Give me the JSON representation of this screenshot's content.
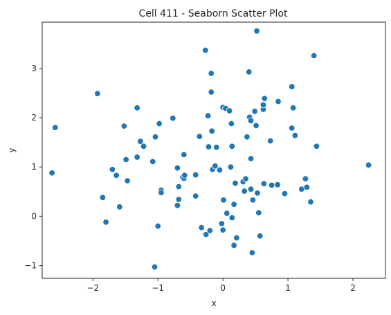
{
  "chart_data": {
    "type": "scatter",
    "title": "Cell 411 - Seaborn Scatter Plot",
    "xlabel": "x",
    "ylabel": "y",
    "xlim": [
      -2.78,
      2.5
    ],
    "ylim": [
      -1.26,
      3.94
    ],
    "xticks": [
      -2,
      -1,
      0,
      1,
      2
    ],
    "yticks": [
      -1,
      0,
      1,
      2,
      3
    ],
    "xtick_labels": [
      "−2",
      "−1",
      "0",
      "1",
      "2"
    ],
    "ytick_labels": [
      "−1",
      "0",
      "1",
      "2",
      "3"
    ],
    "grid": false,
    "marker_color": "#1f77b4",
    "points": [
      [
        -2.63,
        0.88
      ],
      [
        -2.58,
        1.8
      ],
      [
        -1.93,
        2.49
      ],
      [
        -1.85,
        0.38
      ],
      [
        -1.8,
        -0.12
      ],
      [
        -1.7,
        0.95
      ],
      [
        -1.64,
        0.83
      ],
      [
        -1.59,
        0.19
      ],
      [
        -1.52,
        1.83
      ],
      [
        -1.49,
        1.15
      ],
      [
        -1.47,
        0.72
      ],
      [
        -1.32,
        2.2
      ],
      [
        -1.32,
        1.2
      ],
      [
        -1.27,
        1.52
      ],
      [
        -1.22,
        1.42
      ],
      [
        -1.08,
        1.11
      ],
      [
        -1.05,
        -1.03
      ],
      [
        -1.04,
        1.61
      ],
      [
        -1.0,
        -0.2
      ],
      [
        -0.98,
        1.88
      ],
      [
        -0.95,
        0.53
      ],
      [
        -0.95,
        0.48
      ],
      [
        -0.77,
        1.99
      ],
      [
        -0.7,
        0.98
      ],
      [
        -0.7,
        0.22
      ],
      [
        -0.68,
        0.34
      ],
      [
        -0.68,
        0.6
      ],
      [
        -0.62,
        0.79
      ],
      [
        -0.6,
        1.25
      ],
      [
        -0.6,
        0.77
      ],
      [
        -0.59,
        0.83
      ],
      [
        -0.42,
        0.84
      ],
      [
        -0.42,
        0.41
      ],
      [
        -0.36,
        1.62
      ],
      [
        -0.33,
        -0.23
      ],
      [
        -0.27,
        3.37
      ],
      [
        -0.26,
        -0.37
      ],
      [
        -0.23,
        2.04
      ],
      [
        -0.22,
        1.41
      ],
      [
        -0.2,
        -0.29
      ],
      [
        -0.18,
        2.9
      ],
      [
        -0.18,
        2.52
      ],
      [
        -0.17,
        1.73
      ],
      [
        -0.16,
        0.95
      ],
      [
        -0.12,
        1.02
      ],
      [
        -0.1,
        1.4
      ],
      [
        -0.05,
        0.94
      ],
      [
        -0.02,
        -0.15
      ],
      [
        0.0,
        2.21
      ],
      [
        0.0,
        -0.28
      ],
      [
        0.01,
        0.33
      ],
      [
        0.04,
        2.19
      ],
      [
        0.06,
        0.06
      ],
      [
        0.1,
        2.14
      ],
      [
        0.12,
        1.0
      ],
      [
        0.13,
        1.88
      ],
      [
        0.14,
        1.42
      ],
      [
        0.14,
        -0.03
      ],
      [
        0.17,
        0.24
      ],
      [
        0.17,
        -0.59
      ],
      [
        0.19,
        0.67
      ],
      [
        0.21,
        -0.44
      ],
      [
        0.31,
        0.7
      ],
      [
        0.33,
        0.51
      ],
      [
        0.35,
        0.76
      ],
      [
        0.37,
        1.61
      ],
      [
        0.4,
        2.93
      ],
      [
        0.41,
        2.01
      ],
      [
        0.43,
        1.17
      ],
      [
        0.43,
        1.94
      ],
      [
        0.43,
        0.55
      ],
      [
        0.45,
        -0.74
      ],
      [
        0.46,
        0.33
      ],
      [
        0.49,
        2.13
      ],
      [
        0.51,
        1.84
      ],
      [
        0.52,
        3.76
      ],
      [
        0.53,
        0.47
      ],
      [
        0.55,
        0.07
      ],
      [
        0.57,
        -0.4
      ],
      [
        0.62,
        2.17
      ],
      [
        0.62,
        2.26
      ],
      [
        0.63,
        0.66
      ],
      [
        0.64,
        2.39
      ],
      [
        0.73,
        1.53
      ],
      [
        0.75,
        0.63
      ],
      [
        0.84,
        0.64
      ],
      [
        0.85,
        2.33
      ],
      [
        0.95,
        0.46
      ],
      [
        1.06,
        2.63
      ],
      [
        1.06,
        1.79
      ],
      [
        1.08,
        2.2
      ],
      [
        1.11,
        1.64
      ],
      [
        1.21,
        0.55
      ],
      [
        1.27,
        0.76
      ],
      [
        1.29,
        0.59
      ],
      [
        1.35,
        0.29
      ],
      [
        1.4,
        3.26
      ],
      [
        1.44,
        1.42
      ],
      [
        2.24,
        1.04
      ]
    ]
  }
}
